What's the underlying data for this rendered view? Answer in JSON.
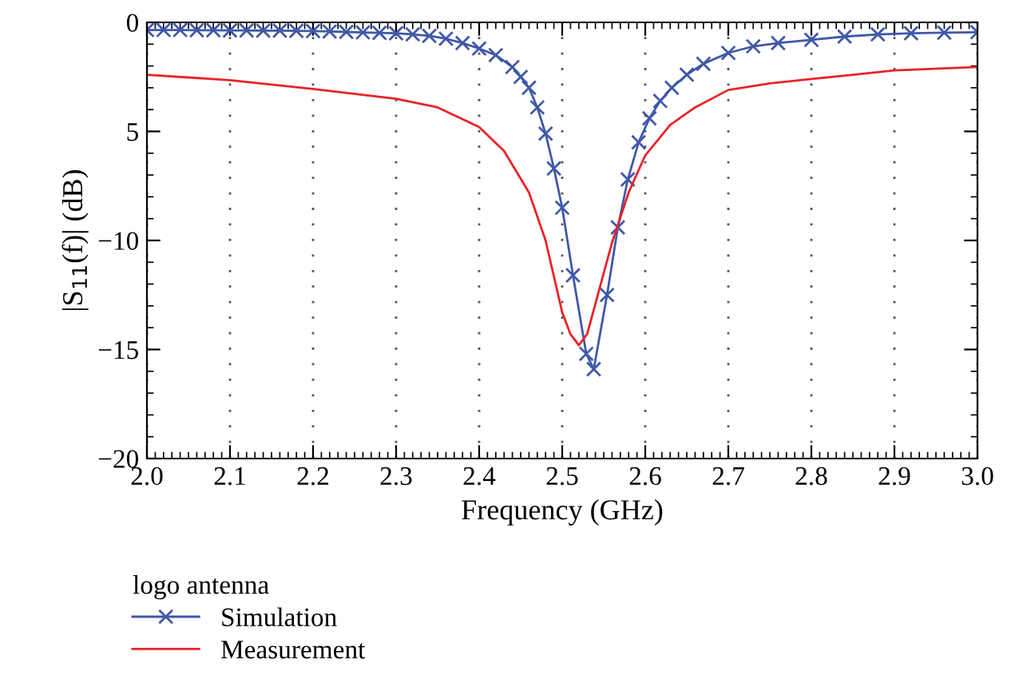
{
  "chart_data": {
    "type": "line",
    "xlabel": "Frequency (GHz)",
    "ylabel": "|S$_{11}$(f)| (dB)",
    "legend_title": "logo antenna",
    "legend": "bottom",
    "grid": "x",
    "xlim": [
      2.0,
      3.0
    ],
    "xticks": [
      {
        "value": 2.0,
        "label": "2.0"
      },
      2.1,
      2.2,
      2.3,
      2.4,
      2.5,
      2.6,
      2.7,
      2.8,
      2.9,
      {
        "value": 3.0,
        "label": "3.0"
      }
    ],
    "ylim": [
      -20,
      0
    ],
    "yticks": [
      {
        "value": -20,
        "label": "−20"
      },
      {
        "value": -15,
        "label": "−15"
      },
      {
        "value": -10,
        "label": "−10"
      },
      {
        "value": -5,
        "label": "5"
      },
      0
    ],
    "series": [
      {
        "name": "Simulation",
        "color": "#3f58a8",
        "marker": "cross",
        "x": [
          2.0,
          2.02,
          2.04,
          2.06,
          2.08,
          2.1,
          2.12,
          2.14,
          2.16,
          2.18,
          2.2,
          2.22,
          2.24,
          2.26,
          2.28,
          2.3,
          2.32,
          2.34,
          2.36,
          2.38,
          2.4,
          2.42,
          2.44,
          2.45,
          2.46,
          2.47,
          2.48,
          2.49,
          2.5,
          2.513,
          2.529,
          2.538,
          2.554,
          2.567,
          2.579,
          2.592,
          2.605,
          2.618,
          2.632,
          2.65,
          2.67,
          2.7,
          2.73,
          2.76,
          2.8,
          2.84,
          2.88,
          2.92,
          2.96,
          3.0
        ],
        "values": [
          -0.35,
          -0.35,
          -0.35,
          -0.36,
          -0.36,
          -0.37,
          -0.37,
          -0.38,
          -0.38,
          -0.39,
          -0.4,
          -0.42,
          -0.44,
          -0.46,
          -0.48,
          -0.5,
          -0.55,
          -0.62,
          -0.75,
          -0.95,
          -1.2,
          -1.5,
          -2.05,
          -2.5,
          -3.0,
          -3.9,
          -5.1,
          -6.7,
          -8.5,
          -11.6,
          -15.2,
          -15.9,
          -12.5,
          -9.4,
          -7.2,
          -5.5,
          -4.4,
          -3.6,
          -3.0,
          -2.4,
          -1.9,
          -1.4,
          -1.1,
          -0.95,
          -0.8,
          -0.65,
          -0.55,
          -0.5,
          -0.47,
          -0.45
        ]
      },
      {
        "name": "Measurement",
        "color": "#e8232a",
        "marker": "none",
        "x": [
          2.0,
          2.1,
          2.2,
          2.3,
          2.35,
          2.4,
          2.43,
          2.46,
          2.48,
          2.5,
          2.51,
          2.52,
          2.53,
          2.54,
          2.56,
          2.58,
          2.6,
          2.63,
          2.66,
          2.7,
          2.75,
          2.8,
          2.85,
          2.9,
          3.0
        ],
        "values": [
          -2.4,
          -2.65,
          -3.05,
          -3.5,
          -3.9,
          -4.8,
          -5.9,
          -7.8,
          -10.0,
          -13.3,
          -14.3,
          -14.8,
          -14.3,
          -12.9,
          -10.1,
          -7.8,
          -6.1,
          -4.7,
          -3.9,
          -3.1,
          -2.8,
          -2.6,
          -2.4,
          -2.2,
          -2.05
        ]
      }
    ]
  }
}
